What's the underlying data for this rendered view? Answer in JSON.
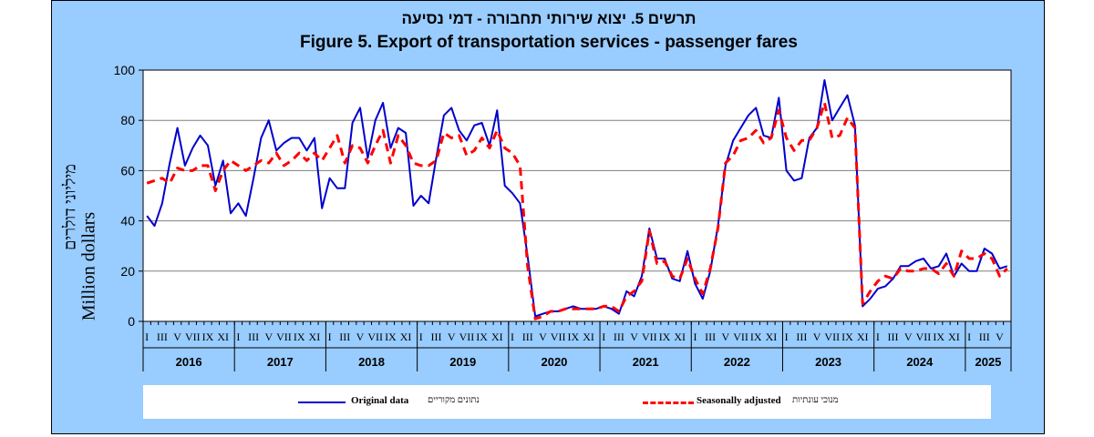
{
  "title_hebrew": "תרשים 5. יצוא שירותי תחבורה - דמי נסיעה",
  "title_english": "Figure 5. Export of transportation services - passenger fares",
  "ylabel_hebrew": "מיליוני דולרים",
  "ylabel_english": "Million dollars",
  "legend": {
    "original": {
      "label": "Original data",
      "label_hebrew": "נתונים מקוריים",
      "color": "#0000cc"
    },
    "seasonal": {
      "label": "Seasonally adjusted",
      "label_hebrew": "מנוכי עונתיות",
      "color": "#ff0000"
    }
  },
  "colors": {
    "frame_bg": "#99ccff",
    "plot_bg": "#ffffff",
    "grid": "#808080"
  },
  "chart_data": {
    "type": "line",
    "ylim": [
      0,
      100
    ],
    "yticks": [
      0,
      20,
      40,
      60,
      80,
      100
    ],
    "grid": true,
    "legend_position": "bottom",
    "month_tick_labels": [
      "I",
      "III",
      "V",
      "VII",
      "IX",
      "XI"
    ],
    "years": [
      "2016",
      "2017",
      "2018",
      "2019",
      "2020",
      "2021",
      "2022",
      "2023",
      "2024",
      "2025"
    ],
    "x_start": "2016-01",
    "series": [
      {
        "name": "Original data",
        "style": "solid",
        "values": [
          42,
          38,
          47,
          63,
          77,
          62,
          69,
          74,
          70,
          54,
          64,
          43,
          47,
          42,
          57,
          73,
          80,
          68,
          71,
          73,
          73,
          68,
          73,
          45,
          57,
          53,
          53,
          79,
          85,
          65,
          80,
          87,
          69,
          77,
          75,
          46,
          50,
          47,
          65,
          82,
          85,
          76,
          72,
          78,
          79,
          70,
          84,
          54,
          51,
          47,
          26,
          2,
          3,
          4,
          4,
          5,
          6,
          5,
          5,
          5,
          6,
          5,
          3,
          12,
          10,
          18,
          37,
          25,
          25,
          17,
          16,
          28,
          15,
          9,
          20,
          38,
          62,
          72,
          77,
          82,
          85,
          74,
          73,
          89,
          60,
          56,
          57,
          73,
          77,
          96,
          80,
          85,
          90,
          78,
          6,
          9,
          13,
          14,
          17,
          22,
          22,
          24,
          25,
          21,
          22,
          27,
          18,
          23,
          20,
          20,
          29,
          27,
          21,
          22
        ],
        "color": "#0000cc"
      },
      {
        "name": "Seasonally adjusted",
        "style": "dashed",
        "values": [
          55,
          56,
          57,
          55,
          61,
          60,
          60,
          62,
          62,
          52,
          60,
          64,
          62,
          60,
          62,
          64,
          63,
          67,
          62,
          64,
          67,
          64,
          67,
          64,
          69,
          74,
          63,
          70,
          69,
          63,
          70,
          76,
          63,
          74,
          70,
          63,
          62,
          62,
          64,
          75,
          73,
          74,
          66,
          68,
          73,
          69,
          76,
          69,
          67,
          62,
          22,
          1,
          2,
          4,
          4,
          5,
          5,
          5,
          5,
          5,
          6,
          6,
          4,
          10,
          12,
          16,
          36,
          23,
          24,
          18,
          17,
          25,
          17,
          11,
          21,
          37,
          63,
          66,
          72,
          73,
          76,
          71,
          73,
          84,
          73,
          68,
          72,
          72,
          77,
          87,
          73,
          74,
          81,
          77,
          7,
          12,
          16,
          18,
          17,
          21,
          20,
          20,
          21,
          21,
          19,
          23,
          18,
          28,
          25,
          25,
          27,
          25,
          18,
          21
        ]
      }
    ]
  }
}
